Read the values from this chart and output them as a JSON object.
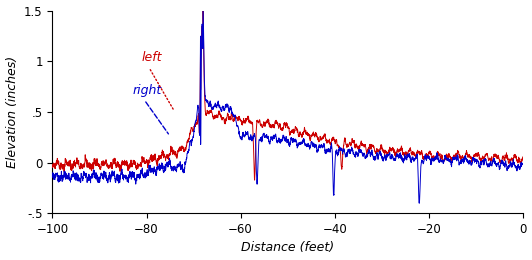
{
  "xlim": [
    -100,
    0
  ],
  "ylim": [
    -0.5,
    1.5
  ],
  "xticks": [
    -100,
    -80,
    -60,
    -40,
    -20,
    0
  ],
  "yticks": [
    -0.5,
    0,
    0.5,
    1,
    1.5
  ],
  "xlabel": "Distance (feet)",
  "ylabel": "Elevation (inches)",
  "left_color": "#cc0000",
  "right_color": "#0000cc",
  "legend_left_label": "left",
  "legend_right_label": "right",
  "linewidth": 0.7,
  "figsize": [
    5.32,
    2.6
  ],
  "dpi": 100
}
